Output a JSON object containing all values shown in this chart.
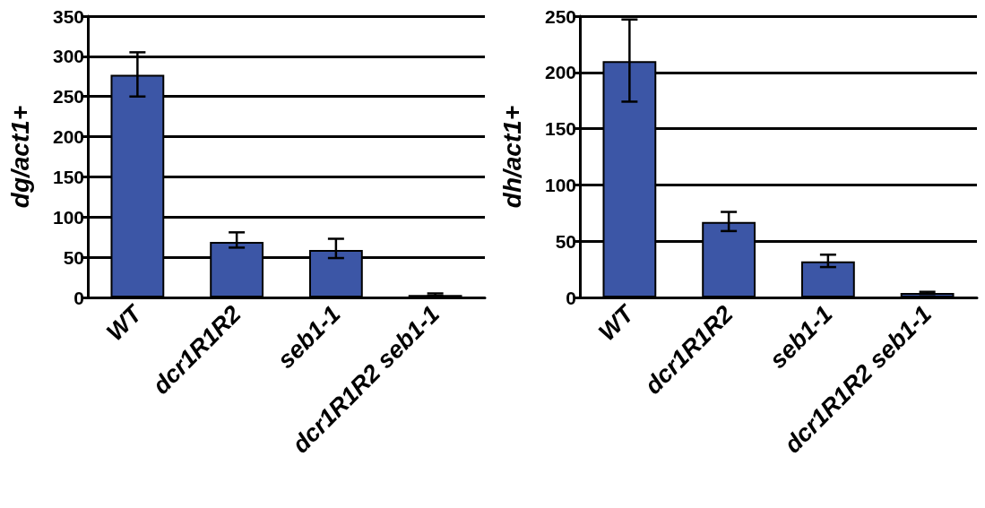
{
  "chart_data": [
    {
      "type": "bar",
      "ylabel": "dg/act1+",
      "categories": [
        "WT",
        "dcr1R1R2",
        "seb1-1",
        "dcr1R1R2 seb1-1"
      ],
      "color": "#3c56a6",
      "values": [
        277,
        69,
        59,
        3
      ],
      "errors": [
        [
          250,
          305
        ],
        [
          62,
          81
        ],
        [
          49,
          73
        ],
        [
          2,
          5
        ]
      ],
      "ylim": [
        0,
        350
      ],
      "yticks": [
        0,
        50,
        100,
        150,
        200,
        250,
        300,
        350
      ],
      "grid": "y"
    },
    {
      "type": "bar",
      "ylabel": "dh/act1+",
      "categories": [
        "WT",
        "dcr1R1R2",
        "seb1-1",
        "dcr1R1R2 seb1-1"
      ],
      "color": "#3c56a6",
      "values": [
        210,
        67,
        32,
        4
      ],
      "errors": [
        [
          174,
          247
        ],
        [
          59,
          76
        ],
        [
          27,
          38
        ],
        [
          3,
          5
        ]
      ],
      "ylim": [
        0,
        250
      ],
      "yticks": [
        0,
        50,
        100,
        150,
        200,
        250
      ],
      "grid": "y"
    }
  ]
}
